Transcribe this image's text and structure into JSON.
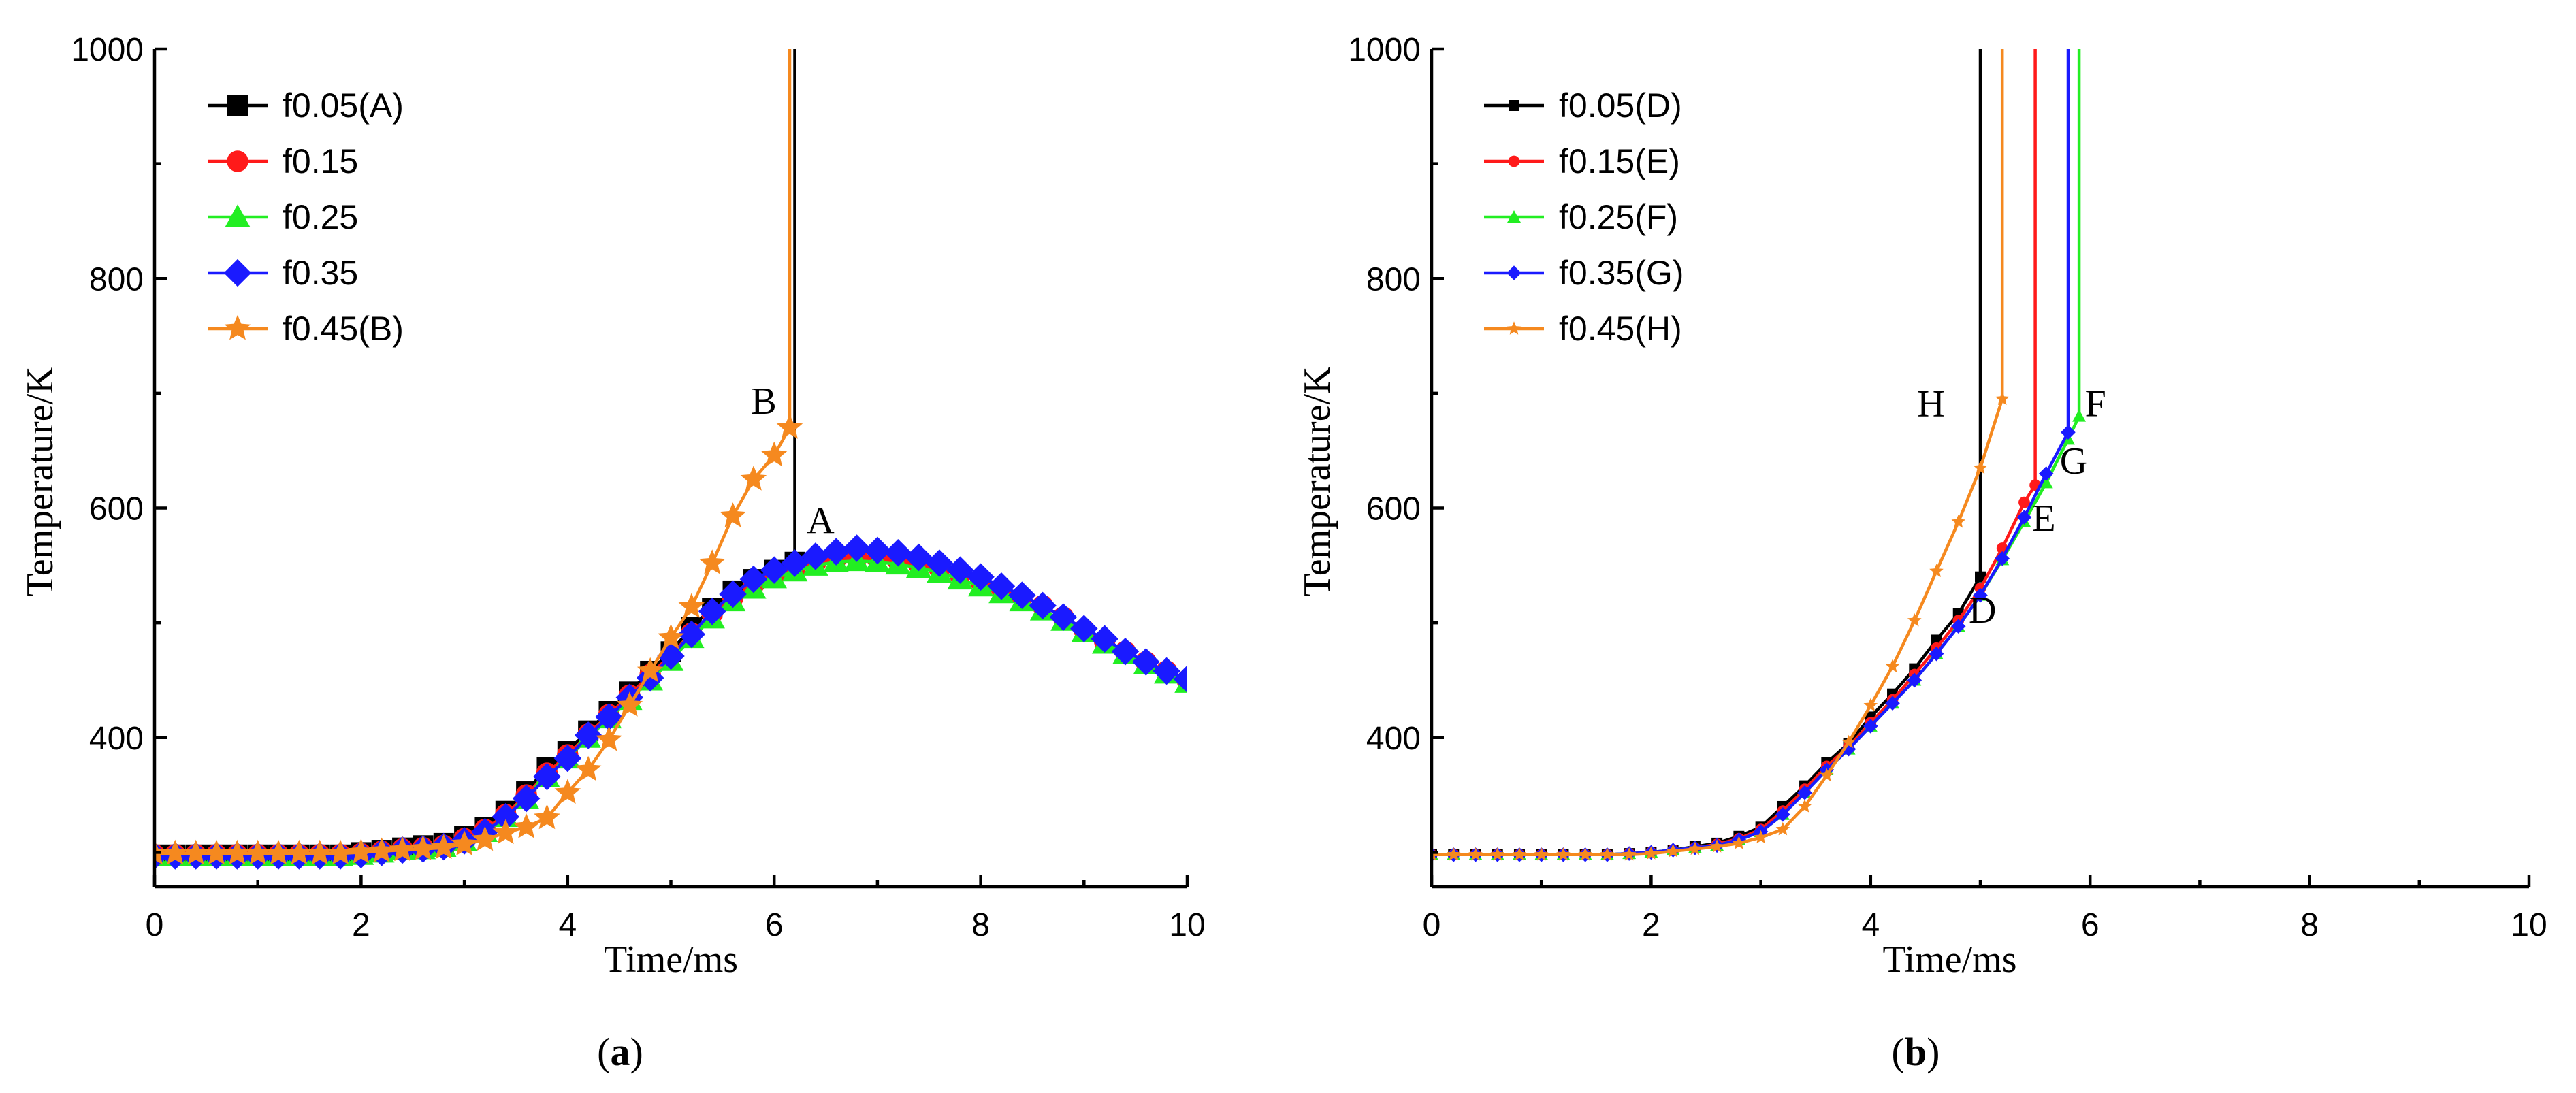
{
  "colors": {
    "black": "#000000",
    "red": "#ff1a1a",
    "green": "#22ee22",
    "blue": "#1a1aff",
    "orange": "#f5891f"
  },
  "chart_data": [
    {
      "type": "line",
      "title": "",
      "caption": {
        "open": "(",
        "letter": "a",
        "close": ")"
      },
      "xlabel": "Time/ms",
      "ylabel": "Temperature/K",
      "xlim": [
        0,
        10
      ],
      "ylim": [
        270,
        1000
      ],
      "xticks": [
        0,
        2,
        4,
        6,
        8,
        10
      ],
      "yticks": [
        400,
        600,
        800,
        1000
      ],
      "marker_size": "large",
      "series": [
        {
          "name": "f0.05(A)",
          "color": "#000000",
          "marker": "square",
          "x": [
            0,
            0.2,
            0.4,
            0.6,
            0.8,
            1.0,
            1.2,
            1.4,
            1.6,
            1.8,
            2.0,
            2.2,
            2.4,
            2.6,
            2.8,
            3.0,
            3.2,
            3.4,
            3.6,
            3.8,
            4.0,
            4.2,
            4.4,
            4.6,
            4.8,
            5.0,
            5.2,
            5.4,
            5.6,
            5.8,
            6.0,
            6.2,
            6.2
          ],
          "y": [
            298,
            298,
            298,
            298,
            298,
            298,
            298,
            298,
            298,
            298,
            300,
            302,
            304,
            306,
            308,
            314,
            322,
            336,
            353,
            374,
            388,
            406,
            423,
            440,
            458,
            475,
            496,
            513,
            528,
            538,
            546,
            553,
            1000
          ]
        },
        {
          "name": "f0.15",
          "color": "#ff1a1a",
          "marker": "circle",
          "x": [
            0,
            0.2,
            0.4,
            0.6,
            0.8,
            1.0,
            1.2,
            1.4,
            1.6,
            1.8,
            2.0,
            2.2,
            2.4,
            2.6,
            2.8,
            3.0,
            3.2,
            3.4,
            3.6,
            3.8,
            4.0,
            4.2,
            4.4,
            4.6,
            4.8,
            5.0,
            5.2,
            5.4,
            5.6,
            5.8,
            6.0,
            6.2,
            6.4,
            6.6,
            6.8,
            7.0,
            7.2,
            7.4,
            7.6,
            7.8,
            8.0,
            8.2,
            8.4,
            8.6,
            8.8,
            9.0,
            9.2,
            9.4,
            9.6,
            9.8,
            10.0
          ],
          "y": [
            298,
            298,
            298,
            298,
            298,
            298,
            298,
            298,
            298,
            298,
            299,
            301,
            303,
            304,
            306,
            312,
            320,
            333,
            350,
            369,
            385,
            403,
            420,
            437,
            455,
            472,
            491,
            508,
            522,
            533,
            541,
            547,
            552,
            556,
            557,
            556,
            554,
            551,
            547,
            542,
            536,
            530,
            523,
            515,
            505,
            494,
            484,
            475,
            466,
            458,
            450
          ]
        },
        {
          "name": "f0.25",
          "color": "#22ee22",
          "marker": "triangle",
          "x": [
            0,
            0.2,
            0.4,
            0.6,
            0.8,
            1.0,
            1.2,
            1.4,
            1.6,
            1.8,
            2.0,
            2.2,
            2.4,
            2.6,
            2.8,
            3.0,
            3.2,
            3.4,
            3.6,
            3.8,
            4.0,
            4.2,
            4.4,
            4.6,
            4.8,
            5.0,
            5.2,
            5.4,
            5.6,
            5.8,
            6.0,
            6.2,
            6.4,
            6.6,
            6.8,
            7.0,
            7.2,
            7.4,
            7.6,
            7.8,
            8.0,
            8.2,
            8.4,
            8.6,
            8.8,
            9.0,
            9.2,
            9.4,
            9.6,
            9.8,
            10.0
          ],
          "y": [
            297,
            297,
            297,
            297,
            297,
            297,
            297,
            297,
            297,
            297,
            298,
            300,
            302,
            303,
            305,
            310,
            318,
            331,
            347,
            366,
            382,
            400,
            417,
            433,
            450,
            467,
            487,
            504,
            519,
            530,
            539,
            545,
            550,
            553,
            554,
            553,
            551,
            548,
            544,
            538,
            532,
            526,
            519,
            511,
            502,
            492,
            482,
            473,
            464,
            456,
            448
          ]
        },
        {
          "name": "f0.35",
          "color": "#1a1aff",
          "marker": "diamond",
          "x": [
            0,
            0.2,
            0.4,
            0.6,
            0.8,
            1.0,
            1.2,
            1.4,
            1.6,
            1.8,
            2.0,
            2.2,
            2.4,
            2.6,
            2.8,
            3.0,
            3.2,
            3.4,
            3.6,
            3.8,
            4.0,
            4.2,
            4.4,
            4.6,
            4.8,
            5.0,
            5.2,
            5.4,
            5.6,
            5.8,
            6.0,
            6.2,
            6.4,
            6.6,
            6.8,
            7.0,
            7.2,
            7.4,
            7.6,
            7.8,
            8.0,
            8.2,
            8.4,
            8.6,
            8.8,
            9.0,
            9.2,
            9.4,
            9.6,
            9.8,
            10.0
          ],
          "y": [
            297,
            297,
            297,
            297,
            297,
            297,
            297,
            297,
            297,
            297,
            298,
            300,
            302,
            303,
            305,
            310,
            318,
            331,
            347,
            366,
            382,
            402,
            418,
            435,
            452,
            471,
            490,
            510,
            525,
            538,
            546,
            552,
            558,
            562,
            565,
            563,
            561,
            557,
            552,
            546,
            540,
            532,
            524,
            515,
            505,
            495,
            486,
            475,
            466,
            458,
            451
          ]
        },
        {
          "name": "f0.45(B)",
          "color": "#f5891f",
          "marker": "star",
          "x": [
            0,
            0.2,
            0.4,
            0.6,
            0.8,
            1.0,
            1.2,
            1.4,
            1.6,
            1.8,
            2.0,
            2.2,
            2.4,
            2.6,
            2.8,
            3.0,
            3.2,
            3.4,
            3.6,
            3.8,
            4.0,
            4.2,
            4.4,
            4.6,
            4.8,
            5.0,
            5.2,
            5.4,
            5.6,
            5.8,
            6.0,
            6.15,
            6.15
          ],
          "y": [
            299,
            299,
            299,
            299,
            299,
            299,
            299,
            299,
            299,
            299,
            300,
            301,
            302,
            303,
            304,
            307,
            311,
            317,
            322,
            330,
            352,
            372,
            398,
            428,
            458,
            487,
            514,
            552,
            593,
            625,
            646,
            670,
            1000
          ]
        }
      ],
      "annotations": [
        {
          "text": "B",
          "x": 5.9,
          "y": 682
        },
        {
          "text": "A",
          "x": 6.45,
          "y": 578
        }
      ]
    },
    {
      "type": "line",
      "title": "",
      "caption": {
        "open": "(",
        "letter": "b",
        "close": ")"
      },
      "xlabel": "Time/ms",
      "ylabel": "Temperature/K",
      "xlim": [
        0,
        10
      ],
      "ylim": [
        270,
        1000
      ],
      "xticks": [
        0,
        2,
        4,
        6,
        8,
        10
      ],
      "yticks": [
        400,
        600,
        800,
        1000
      ],
      "marker_size": "small",
      "series": [
        {
          "name": "f0.05(D)",
          "color": "#000000",
          "marker": "square",
          "x": [
            0,
            0.2,
            0.4,
            0.6,
            0.8,
            1.0,
            1.2,
            1.4,
            1.6,
            1.8,
            2.0,
            2.2,
            2.4,
            2.6,
            2.8,
            3.0,
            3.2,
            3.4,
            3.6,
            3.8,
            4.0,
            4.2,
            4.4,
            4.6,
            4.8,
            5.0,
            5.0
          ],
          "y": [
            298,
            298,
            298,
            298,
            298,
            298,
            298,
            298,
            298,
            299,
            300,
            302,
            305,
            308,
            314,
            322,
            340,
            358,
            378,
            395,
            418,
            438,
            460,
            485,
            508,
            540,
            1000
          ]
        },
        {
          "name": "f0.15(E)",
          "color": "#ff1a1a",
          "marker": "circle",
          "x": [
            0,
            0.2,
            0.4,
            0.6,
            0.8,
            1.0,
            1.2,
            1.4,
            1.6,
            1.8,
            2.0,
            2.2,
            2.4,
            2.6,
            2.8,
            3.0,
            3.2,
            3.4,
            3.6,
            3.8,
            4.0,
            4.2,
            4.4,
            4.6,
            4.8,
            5.0,
            5.2,
            5.4,
            5.5,
            5.5
          ],
          "y": [
            298,
            298,
            298,
            298,
            298,
            298,
            298,
            298,
            298,
            299,
            300,
            302,
            304,
            307,
            312,
            320,
            336,
            355,
            375,
            392,
            413,
            433,
            455,
            478,
            502,
            530,
            565,
            605,
            620,
            1000
          ]
        },
        {
          "name": "f0.25(F)",
          "color": "#22ee22",
          "marker": "triangle",
          "x": [
            0,
            0.2,
            0.4,
            0.6,
            0.8,
            1.0,
            1.2,
            1.4,
            1.6,
            1.8,
            2.0,
            2.2,
            2.4,
            2.6,
            2.8,
            3.0,
            3.2,
            3.4,
            3.6,
            3.8,
            4.0,
            4.2,
            4.4,
            4.6,
            4.8,
            5.0,
            5.2,
            5.4,
            5.6,
            5.8,
            5.9,
            5.9
          ],
          "y": [
            298,
            298,
            298,
            298,
            298,
            298,
            298,
            298,
            298,
            299,
            300,
            302,
            304,
            306,
            311,
            318,
            333,
            352,
            372,
            390,
            410,
            430,
            450,
            473,
            497,
            524,
            555,
            588,
            622,
            660,
            680,
            1000
          ]
        },
        {
          "name": "f0.35(G)",
          "color": "#1a1aff",
          "marker": "diamond",
          "x": [
            0,
            0.2,
            0.4,
            0.6,
            0.8,
            1.0,
            1.2,
            1.4,
            1.6,
            1.8,
            2.0,
            2.2,
            2.4,
            2.6,
            2.8,
            3.0,
            3.2,
            3.4,
            3.6,
            3.8,
            4.0,
            4.2,
            4.4,
            4.6,
            4.8,
            5.0,
            5.2,
            5.4,
            5.6,
            5.8,
            5.8
          ],
          "y": [
            298,
            298,
            298,
            298,
            298,
            298,
            298,
            298,
            298,
            299,
            300,
            302,
            304,
            306,
            311,
            318,
            333,
            352,
            372,
            390,
            410,
            430,
            450,
            473,
            497,
            524,
            556,
            592,
            630,
            666,
            1000
          ]
        },
        {
          "name": "f0.45(H)",
          "color": "#f5891f",
          "marker": "star",
          "x": [
            0,
            0.2,
            0.4,
            0.6,
            0.8,
            1.0,
            1.2,
            1.4,
            1.6,
            1.8,
            2.0,
            2.2,
            2.4,
            2.6,
            2.8,
            3.0,
            3.2,
            3.4,
            3.6,
            3.8,
            4.0,
            4.2,
            4.4,
            4.6,
            4.8,
            5.0,
            5.2,
            5.2
          ],
          "y": [
            298,
            298,
            298,
            298,
            298,
            298,
            298,
            298,
            298,
            298,
            299,
            301,
            303,
            305,
            308,
            313,
            320,
            340,
            367,
            396,
            428,
            462,
            502,
            545,
            588,
            635,
            695,
            1000
          ]
        }
      ],
      "annotations": [
        {
          "text": "H",
          "x": 4.55,
          "y": 680
        },
        {
          "text": "F",
          "x": 6.05,
          "y": 680
        },
        {
          "text": "G",
          "x": 5.85,
          "y": 630
        },
        {
          "text": "E",
          "x": 5.58,
          "y": 580
        },
        {
          "text": "D",
          "x": 5.02,
          "y": 500
        }
      ]
    }
  ]
}
